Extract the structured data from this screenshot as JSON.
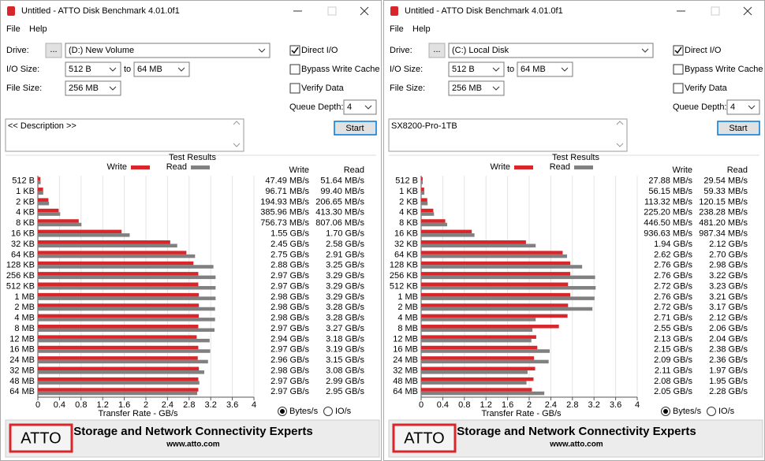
{
  "windows": [
    {
      "title": "Untitled - ATTO Disk Benchmark 4.01.0f1",
      "menu": [
        "File",
        "Help"
      ],
      "drive_label": "Drive:",
      "browse_button": "...",
      "drive": "(D:) New Volume",
      "io_size_label": "I/O Size:",
      "io_size_from": "512 B",
      "io_size_to_label": "to",
      "io_size_to": "64 MB",
      "file_size_label": "File Size:",
      "file_size": "256 MB",
      "options": [
        {
          "label": "Direct I/O",
          "checked": true
        },
        {
          "label": "Bypass Write Cache",
          "checked": false
        },
        {
          "label": "Verify Data",
          "checked": false
        }
      ],
      "queue_depth_label": "Queue Depth:",
      "queue_depth": "4",
      "start_button": "Start",
      "description": "<< Description >>",
      "chart_data": {
        "type": "bar",
        "title": "Test Results",
        "categories": [
          "512 B",
          "1 KB",
          "2 KB",
          "4 KB",
          "8 KB",
          "16 KB",
          "32 KB",
          "64 KB",
          "128 KB",
          "256 KB",
          "512 KB",
          "1 MB",
          "2 MB",
          "4 MB",
          "8 MB",
          "12 MB",
          "16 MB",
          "24 MB",
          "32 MB",
          "48 MB",
          "64 MB"
        ],
        "series": [
          {
            "name": "Write",
            "color": "#d9262b",
            "values": [
              0.04749,
              0.09671,
              0.19493,
              0.38596,
              0.75673,
              1.55,
              2.45,
              2.75,
              2.88,
              2.97,
              2.97,
              2.98,
              2.98,
              2.98,
              2.97,
              2.94,
              2.97,
              2.96,
              2.98,
              2.97,
              2.97
            ],
            "value_labels": [
              "47.49 MB/s",
              "96.71 MB/s",
              "194.93 MB/s",
              "385.96 MB/s",
              "756.73 MB/s",
              "1.55 GB/s",
              "2.45 GB/s",
              "2.75 GB/s",
              "2.88 GB/s",
              "2.97 GB/s",
              "2.97 GB/s",
              "2.98 GB/s",
              "2.98 GB/s",
              "2.98 GB/s",
              "2.97 GB/s",
              "2.94 GB/s",
              "2.97 GB/s",
              "2.96 GB/s",
              "2.98 GB/s",
              "2.97 GB/s",
              "2.97 GB/s"
            ]
          },
          {
            "name": "Read",
            "color": "#808080",
            "values": [
              0.05164,
              0.0994,
              0.20665,
              0.4133,
              0.80706,
              1.7,
              2.58,
              2.91,
              3.25,
              3.29,
              3.29,
              3.29,
              3.28,
              3.28,
              3.27,
              3.18,
              3.19,
              3.15,
              3.08,
              2.99,
              2.95
            ],
            "value_labels": [
              "51.64 MB/s",
              "99.40 MB/s",
              "206.65 MB/s",
              "413.30 MB/s",
              "807.06 MB/s",
              "1.70 GB/s",
              "2.58 GB/s",
              "2.91 GB/s",
              "3.25 GB/s",
              "3.29 GB/s",
              "3.29 GB/s",
              "3.29 GB/s",
              "3.28 GB/s",
              "3.28 GB/s",
              "3.27 GB/s",
              "3.18 GB/s",
              "3.19 GB/s",
              "3.15 GB/s",
              "3.08 GB/s",
              "2.99 GB/s",
              "2.95 GB/s"
            ]
          }
        ],
        "xlim": [
          0,
          4
        ],
        "xticks": [
          0,
          0.4,
          0.8,
          1.2,
          1.6,
          2,
          2.4,
          2.8,
          3.2,
          3.6,
          4
        ],
        "xlabel": "Transfer Rate - GB/s",
        "grid": true
      },
      "units_options": [
        {
          "label": "Bytes/s",
          "selected": true
        },
        {
          "label": "IO/s",
          "selected": false
        }
      ],
      "banner": {
        "logo": "ATTO",
        "tagline": "Storage and Network Connectivity Experts",
        "url": "www.atto.com"
      }
    },
    {
      "title": "Untitled - ATTO Disk Benchmark 4.01.0f1",
      "menu": [
        "File",
        "Help"
      ],
      "drive_label": "Drive:",
      "browse_button": "...",
      "drive": "(C:) Local Disk",
      "io_size_label": "I/O Size:",
      "io_size_from": "512 B",
      "io_size_to_label": "to",
      "io_size_to": "64 MB",
      "file_size_label": "File Size:",
      "file_size": "256 MB",
      "options": [
        {
          "label": "Direct I/O",
          "checked": true
        },
        {
          "label": "Bypass Write Cache",
          "checked": false
        },
        {
          "label": "Verify Data",
          "checked": false
        }
      ],
      "queue_depth_label": "Queue Depth:",
      "queue_depth": "4",
      "start_button": "Start",
      "description": "SX8200-Pro-1TB",
      "chart_data": {
        "type": "bar",
        "title": "Test Results",
        "categories": [
          "512 B",
          "1 KB",
          "2 KB",
          "4 KB",
          "8 KB",
          "16 KB",
          "32 KB",
          "64 KB",
          "128 KB",
          "256 KB",
          "512 KB",
          "1 MB",
          "2 MB",
          "4 MB",
          "8 MB",
          "12 MB",
          "16 MB",
          "24 MB",
          "32 MB",
          "48 MB",
          "64 MB"
        ],
        "series": [
          {
            "name": "Write",
            "color": "#d9262b",
            "values": [
              0.02788,
              0.05615,
              0.11332,
              0.2252,
              0.4465,
              0.93663,
              1.94,
              2.62,
              2.76,
              2.76,
              2.72,
              2.76,
              2.72,
              2.71,
              2.55,
              2.13,
              2.15,
              2.09,
              2.11,
              2.08,
              2.05
            ],
            "value_labels": [
              "27.88 MB/s",
              "56.15 MB/s",
              "113.32 MB/s",
              "225.20 MB/s",
              "446.50 MB/s",
              "936.63 MB/s",
              "1.94 GB/s",
              "2.62 GB/s",
              "2.76 GB/s",
              "2.76 GB/s",
              "2.72 GB/s",
              "2.76 GB/s",
              "2.72 GB/s",
              "2.71 GB/s",
              "2.55 GB/s",
              "2.13 GB/s",
              "2.15 GB/s",
              "2.09 GB/s",
              "2.11 GB/s",
              "2.08 GB/s",
              "2.05 GB/s"
            ]
          },
          {
            "name": "Read",
            "color": "#808080",
            "values": [
              0.02954,
              0.05933,
              0.12015,
              0.23828,
              0.4812,
              0.98734,
              2.12,
              2.7,
              2.98,
              3.22,
              3.23,
              3.21,
              3.17,
              2.12,
              2.06,
              2.04,
              2.38,
              2.36,
              1.97,
              1.95,
              2.28
            ],
            "value_labels": [
              "29.54 MB/s",
              "59.33 MB/s",
              "120.15 MB/s",
              "238.28 MB/s",
              "481.20 MB/s",
              "987.34 MB/s",
              "2.12 GB/s",
              "2.70 GB/s",
              "2.98 GB/s",
              "3.22 GB/s",
              "3.23 GB/s",
              "3.21 GB/s",
              "3.17 GB/s",
              "2.12 GB/s",
              "2.06 GB/s",
              "2.04 GB/s",
              "2.38 GB/s",
              "2.36 GB/s",
              "1.97 GB/s",
              "1.95 GB/s",
              "2.28 GB/s"
            ]
          }
        ],
        "xlim": [
          0,
          4
        ],
        "xticks": [
          0,
          0.4,
          0.8,
          1.2,
          1.6,
          2,
          2.4,
          2.8,
          3.2,
          3.6,
          4
        ],
        "xlabel": "Transfer Rate - GB/s",
        "grid": true
      },
      "units_options": [
        {
          "label": "Bytes/s",
          "selected": true
        },
        {
          "label": "IO/s",
          "selected": false
        }
      ],
      "banner": {
        "logo": "ATTO",
        "tagline": "Storage and Network Connectivity Experts",
        "url": "www.atto.com"
      }
    }
  ]
}
